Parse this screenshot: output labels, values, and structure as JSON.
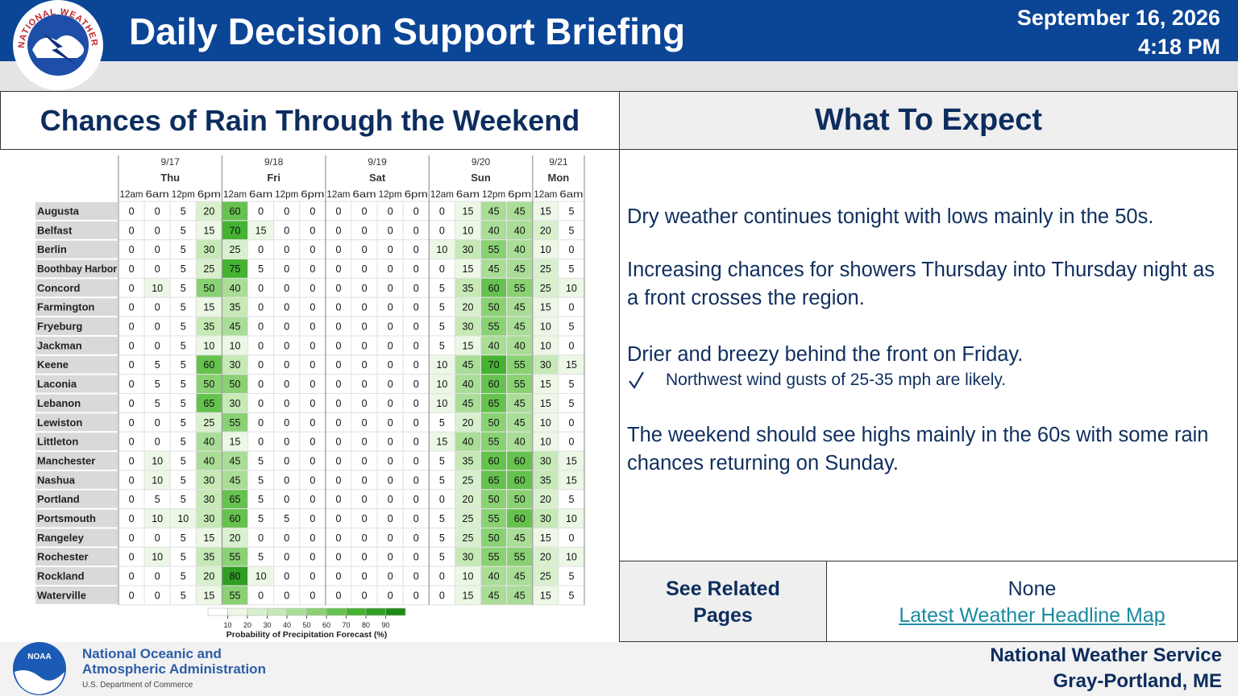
{
  "header": {
    "title": "Daily Decision Support Briefing",
    "date": "September 16, 2026",
    "time": "4:18 PM",
    "logo_text": "NATIONAL WEATHER SERVICE"
  },
  "rain_panel": {
    "title": "Chances of Rain Through the Weekend",
    "table": {
      "days": [
        {
          "date": "9/17",
          "day": "Thu",
          "times": [
            "12am",
            "6am",
            "12pm",
            "6pm"
          ]
        },
        {
          "date": "9/18",
          "day": "Fri",
          "times": [
            "12am",
            "6am",
            "12pm",
            "6pm"
          ]
        },
        {
          "date": "9/19",
          "day": "Sat",
          "times": [
            "12am",
            "6am",
            "12pm",
            "6pm"
          ]
        },
        {
          "date": "9/20",
          "day": "Sun",
          "times": [
            "12am",
            "6am",
            "12pm",
            "6pm"
          ]
        },
        {
          "date": "9/21",
          "day": "Mon",
          "times": [
            "12am",
            "6am"
          ]
        }
      ],
      "rows": [
        {
          "location": "Augusta",
          "values": [
            0,
            0,
            5,
            20,
            60,
            0,
            0,
            0,
            0,
            0,
            0,
            0,
            0,
            15,
            45,
            45,
            15,
            5
          ]
        },
        {
          "location": "Belfast",
          "values": [
            0,
            0,
            5,
            15,
            70,
            15,
            0,
            0,
            0,
            0,
            0,
            0,
            0,
            10,
            40,
            40,
            20,
            5
          ]
        },
        {
          "location": "Berlin",
          "values": [
            0,
            0,
            5,
            30,
            25,
            0,
            0,
            0,
            0,
            0,
            0,
            0,
            10,
            30,
            55,
            40,
            10,
            0
          ]
        },
        {
          "location": "Boothbay Harbor",
          "values": [
            0,
            0,
            5,
            25,
            75,
            5,
            0,
            0,
            0,
            0,
            0,
            0,
            0,
            15,
            45,
            45,
            25,
            5
          ]
        },
        {
          "location": "Concord",
          "values": [
            0,
            10,
            5,
            50,
            40,
            0,
            0,
            0,
            0,
            0,
            0,
            0,
            5,
            35,
            60,
            55,
            25,
            10
          ]
        },
        {
          "location": "Farmington",
          "values": [
            0,
            0,
            5,
            15,
            35,
            0,
            0,
            0,
            0,
            0,
            0,
            0,
            5,
            20,
            50,
            45,
            15,
            0
          ]
        },
        {
          "location": "Fryeburg",
          "values": [
            0,
            0,
            5,
            35,
            45,
            0,
            0,
            0,
            0,
            0,
            0,
            0,
            5,
            30,
            55,
            45,
            10,
            5
          ]
        },
        {
          "location": "Jackman",
          "values": [
            0,
            0,
            5,
            10,
            10,
            0,
            0,
            0,
            0,
            0,
            0,
            0,
            5,
            15,
            40,
            40,
            10,
            0
          ]
        },
        {
          "location": "Keene",
          "values": [
            0,
            5,
            5,
            60,
            30,
            0,
            0,
            0,
            0,
            0,
            0,
            0,
            10,
            45,
            70,
            55,
            30,
            15
          ]
        },
        {
          "location": "Laconia",
          "values": [
            0,
            5,
            5,
            50,
            50,
            0,
            0,
            0,
            0,
            0,
            0,
            0,
            10,
            40,
            60,
            55,
            15,
            5
          ]
        },
        {
          "location": "Lebanon",
          "values": [
            0,
            5,
            5,
            65,
            30,
            0,
            0,
            0,
            0,
            0,
            0,
            0,
            10,
            45,
            65,
            45,
            15,
            5
          ]
        },
        {
          "location": "Lewiston",
          "values": [
            0,
            0,
            5,
            25,
            55,
            0,
            0,
            0,
            0,
            0,
            0,
            0,
            5,
            20,
            50,
            45,
            10,
            0
          ]
        },
        {
          "location": "Littleton",
          "values": [
            0,
            0,
            5,
            40,
            15,
            0,
            0,
            0,
            0,
            0,
            0,
            0,
            15,
            40,
            55,
            40,
            10,
            0
          ]
        },
        {
          "location": "Manchester",
          "values": [
            0,
            10,
            5,
            40,
            45,
            5,
            0,
            0,
            0,
            0,
            0,
            0,
            5,
            35,
            60,
            60,
            30,
            15
          ]
        },
        {
          "location": "Nashua",
          "values": [
            0,
            10,
            5,
            30,
            45,
            5,
            0,
            0,
            0,
            0,
            0,
            0,
            5,
            25,
            65,
            60,
            35,
            15
          ]
        },
        {
          "location": "Portland",
          "values": [
            0,
            5,
            5,
            30,
            65,
            5,
            0,
            0,
            0,
            0,
            0,
            0,
            0,
            20,
            50,
            50,
            20,
            5
          ]
        },
        {
          "location": "Portsmouth",
          "values": [
            0,
            10,
            10,
            30,
            60,
            5,
            5,
            0,
            0,
            0,
            0,
            0,
            5,
            25,
            55,
            60,
            30,
            10
          ]
        },
        {
          "location": "Rangeley",
          "values": [
            0,
            0,
            5,
            15,
            20,
            0,
            0,
            0,
            0,
            0,
            0,
            0,
            5,
            25,
            50,
            45,
            15,
            0
          ]
        },
        {
          "location": "Rochester",
          "values": [
            0,
            10,
            5,
            35,
            55,
            5,
            0,
            0,
            0,
            0,
            0,
            0,
            5,
            30,
            55,
            55,
            20,
            10
          ]
        },
        {
          "location": "Rockland",
          "values": [
            0,
            0,
            5,
            20,
            80,
            10,
            0,
            0,
            0,
            0,
            0,
            0,
            0,
            10,
            40,
            45,
            25,
            5
          ]
        },
        {
          "location": "Waterville",
          "values": [
            0,
            0,
            5,
            15,
            55,
            0,
            0,
            0,
            0,
            0,
            0,
            0,
            0,
            15,
            45,
            45,
            15,
            5
          ]
        }
      ]
    },
    "legend": {
      "ticks": [
        10,
        20,
        30,
        40,
        50,
        60,
        70,
        80,
        90
      ],
      "colors": [
        "#ffffff",
        "#ecf7e6",
        "#d9f0ce",
        "#c6e9b6",
        "#aadd97",
        "#8ad174",
        "#66c24e",
        "#45b232",
        "#2f9e22",
        "#1e8a16"
      ],
      "label": "Probability of Precipitation Forecast (%)"
    }
  },
  "expect_panel": {
    "title": "What To Expect",
    "paragraphs": [
      "Dry weather continues tonight with lows mainly in the 50s.",
      "Increasing chances for showers Thursday into Thursday night as a front crosses the region.",
      "Drier and breezy behind the front on Friday.",
      "The weekend should see highs mainly in the 60s with some rain chances returning on Sunday."
    ],
    "bullet": "Northwest wind gusts of 25-35 mph are likely."
  },
  "related": {
    "label": "See Related Pages",
    "none_text": "None",
    "link": "Latest Weather Headline Map"
  },
  "footer": {
    "noaa_logo": "NOAA",
    "agency_lines": [
      "National Oceanic and",
      "Atmospheric Administration"
    ],
    "department": "U.S. Department of Commerce",
    "office_lines": [
      "National Weather Service",
      "Gray-Portland, ME"
    ]
  }
}
